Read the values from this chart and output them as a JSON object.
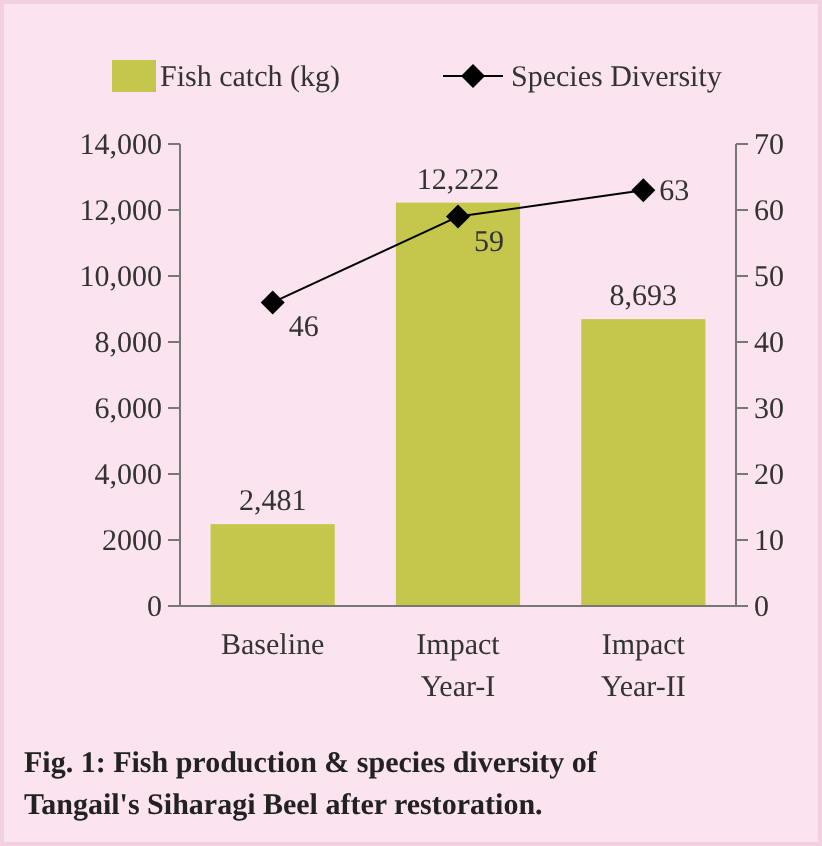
{
  "chart_data": {
    "type": "bar",
    "title": "Fig. 1: Fish production & species diversity of Tangail's Siharagi Beel after restoration.",
    "categories": [
      "Baseline",
      "Impact Year-I",
      "Impact Year-II"
    ],
    "series": [
      {
        "name": "Fish catch (kg)",
        "color": "#c5c64c",
        "values": [
          2481,
          12222,
          8693
        ],
        "value_labels": [
          "2,481",
          "12,222",
          "8,693"
        ]
      },
      {
        "name": "Species Diversity",
        "type": "line",
        "axis": "y2",
        "color": "#000000",
        "marker": "diamond",
        "values": [
          46,
          59,
          63
        ],
        "value_labels": [
          "46",
          "59",
          "63"
        ]
      }
    ],
    "ylim": [
      0,
      14000
    ],
    "yticks": [
      0,
      {
        "value": 2000,
        "label": "2000"
      },
      {
        "value": 4000,
        "label": "4,000"
      },
      {
        "value": 6000,
        "label": "6,000"
      },
      {
        "value": 8000,
        "label": "8,000"
      },
      {
        "value": 10000,
        "label": "10,000"
      },
      {
        "value": 12000,
        "label": "12,000"
      },
      {
        "value": 14000,
        "label": "14,000"
      }
    ],
    "y2lim": [
      0,
      70
    ],
    "y2ticks": [
      0,
      10,
      20,
      30,
      40,
      50,
      60,
      70
    ],
    "legend": "top",
    "grid": false
  }
}
